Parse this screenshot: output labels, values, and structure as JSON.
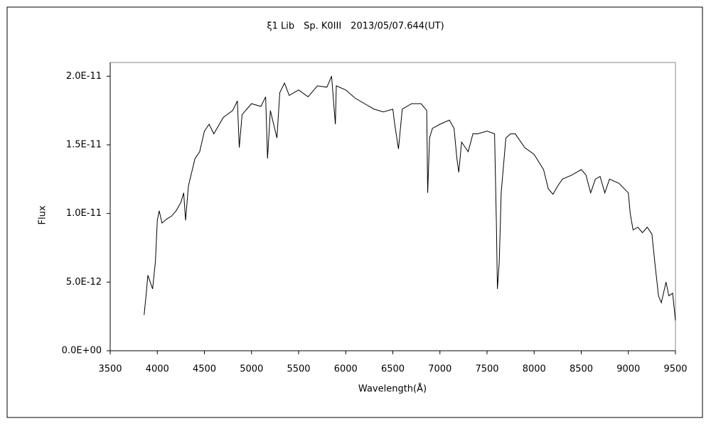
{
  "chart_data": {
    "type": "line",
    "title": "ξ1 Lib　Sp. K0III　2013/05/07.644(UT)",
    "x_label": "Wavelength(Å)",
    "y_label": "Flux",
    "x": [
      3860,
      3880,
      3900,
      3950,
      3980,
      4000,
      4020,
      4050,
      4100,
      4150,
      4200,
      4250,
      4280,
      4300,
      4330,
      4400,
      4450,
      4500,
      4550,
      4600,
      4700,
      4800,
      4850,
      4870,
      4900,
      5000,
      5100,
      5150,
      5170,
      5200,
      5270,
      5300,
      5350,
      5400,
      5500,
      5600,
      5700,
      5800,
      5850,
      5890,
      5900,
      6000,
      6100,
      6200,
      6300,
      6400,
      6500,
      6520,
      6560,
      6600,
      6700,
      6800,
      6860,
      6870,
      6890,
      6920,
      7000,
      7100,
      7150,
      7180,
      7200,
      7230,
      7300,
      7350,
      7400,
      7500,
      7580,
      7600,
      7610,
      7630,
      7650,
      7700,
      7750,
      7800,
      7900,
      8000,
      8100,
      8150,
      8200,
      8250,
      8300,
      8400,
      8500,
      8550,
      8600,
      8650,
      8700,
      8750,
      8800,
      8900,
      9000,
      9020,
      9050,
      9100,
      9150,
      9200,
      9250,
      9280,
      9320,
      9350,
      9400,
      9430,
      9470,
      9500
    ],
    "series": [
      {
        "name": "Flux",
        "color": "#000000",
        "values": [
          2.6e-12,
          4e-12,
          5.5e-12,
          4.5e-12,
          6.5e-12,
          9.5e-12,
          1.02e-11,
          9.3e-12,
          9.6e-12,
          9.8e-12,
          1.02e-11,
          1.08e-11,
          1.15e-11,
          9.5e-12,
          1.2e-11,
          1.4e-11,
          1.45e-11,
          1.6e-11,
          1.65e-11,
          1.58e-11,
          1.7e-11,
          1.75e-11,
          1.82e-11,
          1.48e-11,
          1.72e-11,
          1.8e-11,
          1.78e-11,
          1.85e-11,
          1.4e-11,
          1.75e-11,
          1.55e-11,
          1.88e-11,
          1.95e-11,
          1.86e-11,
          1.9e-11,
          1.85e-11,
          1.93e-11,
          1.92e-11,
          2e-11,
          1.65e-11,
          1.93e-11,
          1.9e-11,
          1.84e-11,
          1.8e-11,
          1.76e-11,
          1.74e-11,
          1.76e-11,
          1.65e-11,
          1.47e-11,
          1.76e-11,
          1.8e-11,
          1.8e-11,
          1.75e-11,
          1.15e-11,
          1.55e-11,
          1.62e-11,
          1.65e-11,
          1.68e-11,
          1.62e-11,
          1.4e-11,
          1.3e-11,
          1.52e-11,
          1.45e-11,
          1.58e-11,
          1.58e-11,
          1.6e-11,
          1.58e-11,
          9e-12,
          4.5e-12,
          6.5e-12,
          1.15e-11,
          1.55e-11,
          1.58e-11,
          1.58e-11,
          1.48e-11,
          1.43e-11,
          1.32e-11,
          1.18e-11,
          1.14e-11,
          1.2e-11,
          1.25e-11,
          1.28e-11,
          1.32e-11,
          1.28e-11,
          1.15e-11,
          1.25e-11,
          1.27e-11,
          1.15e-11,
          1.25e-11,
          1.22e-11,
          1.15e-11,
          1e-11,
          8.8e-12,
          9e-12,
          8.6e-12,
          9e-12,
          8.5e-12,
          6.5e-12,
          4e-12,
          3.5e-12,
          5e-12,
          4e-12,
          4.2e-12,
          2.2e-12
        ]
      }
    ],
    "xlim": [
      3500,
      9500
    ],
    "xticks": [
      3500,
      4000,
      4500,
      5000,
      5500,
      6000,
      6500,
      7000,
      7500,
      8000,
      8500,
      9000,
      9500
    ],
    "ylim": [
      0,
      2.1e-11
    ],
    "yticks": [
      {
        "value": 0,
        "label": "0.0E+00"
      },
      {
        "value": 5e-12,
        "label": "5.0E-12"
      },
      {
        "value": 1e-11,
        "label": "1.0E-11"
      },
      {
        "value": 1.5e-11,
        "label": "1.5E-11"
      },
      {
        "value": 2e-11,
        "label": "2.0E-11"
      }
    ],
    "grid": false
  }
}
